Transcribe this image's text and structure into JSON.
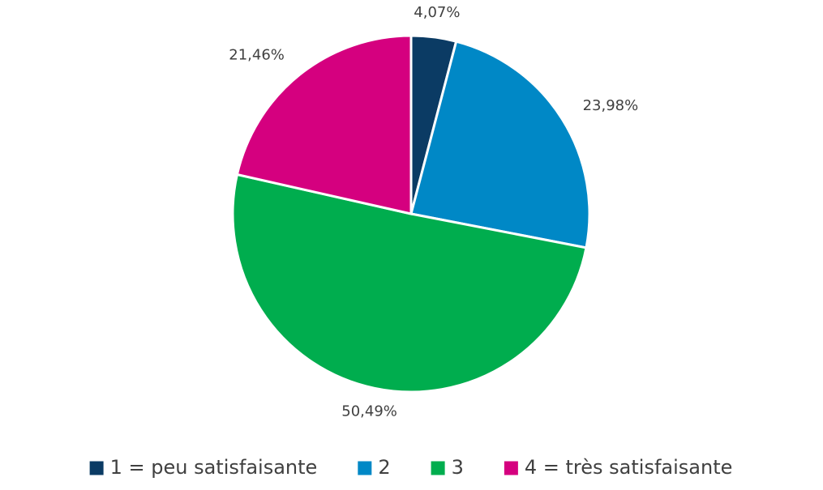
{
  "chart_data": {
    "type": "pie",
    "categories": [
      "1 = peu satisfaisante",
      "2",
      "3",
      "4 = très satisfaisante"
    ],
    "values": [
      4.07,
      23.98,
      50.49,
      21.46
    ],
    "value_labels": [
      "4,07%",
      "23,98%",
      "50,49%",
      "21,46%"
    ],
    "colors": [
      "#0b3b64",
      "#0088c6",
      "#00ad4e",
      "#d5007f"
    ],
    "legend": "bottom"
  }
}
